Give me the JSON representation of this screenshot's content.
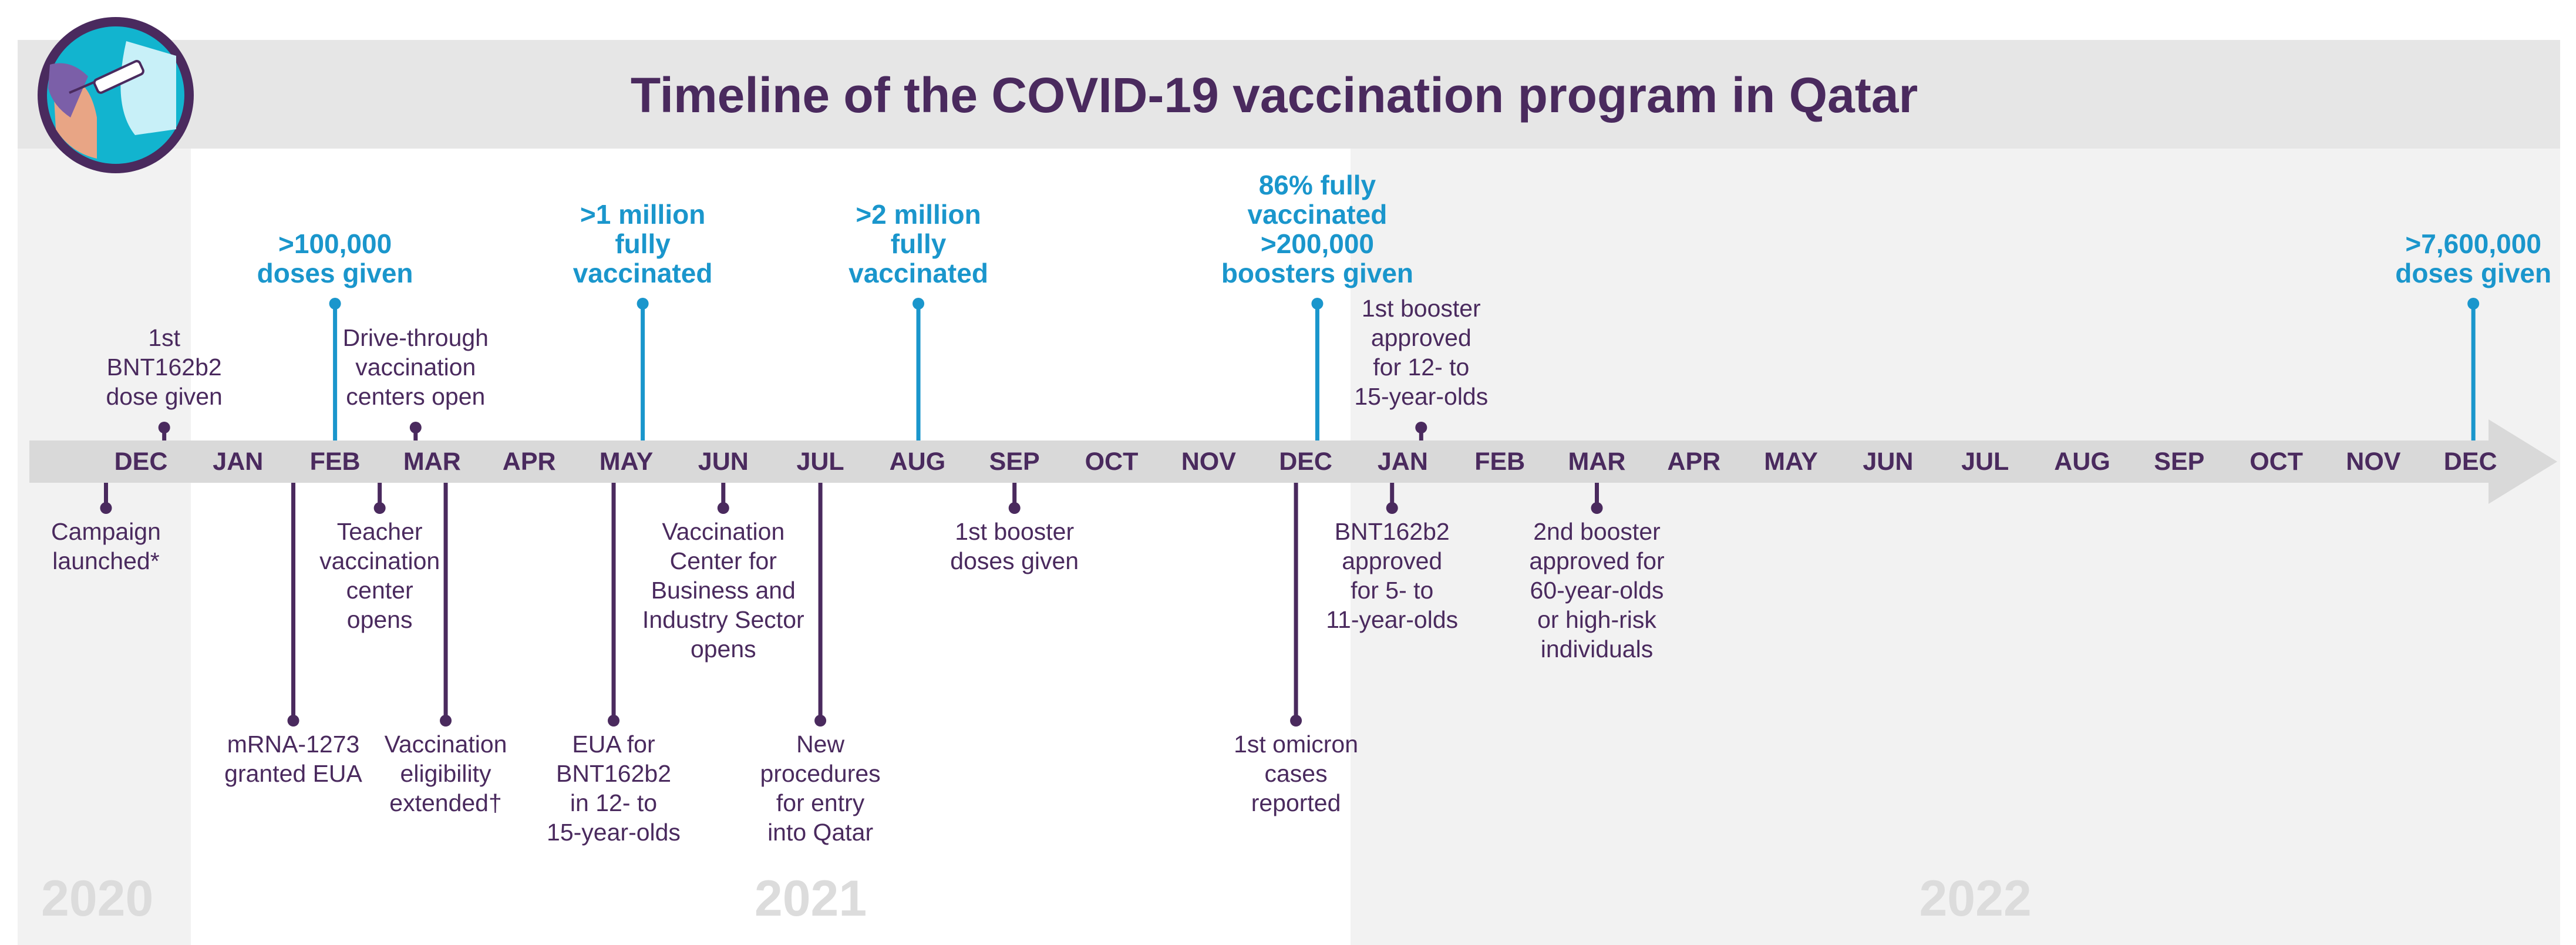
{
  "title": "Timeline of the COVID-19 vaccination program in Qatar",
  "years": [
    {
      "label": "2020",
      "start_month_index": 0
    },
    {
      "label": "2021",
      "start_month_index": 6.2
    },
    {
      "label": "2022",
      "start_month_index": 18.2
    }
  ],
  "months": [
    "DEC",
    "JAN",
    "FEB",
    "MAR",
    "APR",
    "MAY",
    "JUN",
    "JUL",
    "AUG",
    "SEP",
    "OCT",
    "NOV",
    "DEC",
    "JAN",
    "FEB",
    "MAR",
    "APR",
    "MAY",
    "JUN",
    "JUL",
    "AUG",
    "SEP",
    "OCT",
    "NOV",
    "DEC"
  ],
  "milestones": [
    {
      "text": ">100,000\ndoses given",
      "month_index": 2
    },
    {
      "text": ">1 million\nfully\nvaccinated",
      "month_index": 5.17
    },
    {
      "text": ">2 million\nfully\nvaccinated",
      "month_index": 8.01
    },
    {
      "text": "86% fully\nvaccinated\n>200,000\nboosters given",
      "month_index": 12.12
    },
    {
      "text": ">7,600,000\ndoses given",
      "month_index": 24.03
    }
  ],
  "events_above": [
    {
      "text": "1st\nBNT162b2\ndose given",
      "month_index": 0.24
    },
    {
      "text": "Drive-through\nvaccination\ncenters open",
      "month_index": 2.83
    },
    {
      "text": "1st booster\napproved\nfor 12- to\n15-year-olds",
      "month_index": 13.19
    }
  ],
  "events_below": [
    {
      "text": "Campaign\nlaunched*",
      "month_index": -0.36,
      "level": "short"
    },
    {
      "text": "Teacher\nvaccination\ncenter\nopens",
      "month_index": 2.46,
      "level": "short"
    },
    {
      "text": "Vaccination\nCenter for\nBusiness and\nIndustry Sector\nopens",
      "month_index": 6.0,
      "level": "short"
    },
    {
      "text": "1st booster\ndoses given",
      "month_index": 9.0,
      "level": "short"
    },
    {
      "text": "BNT162b2\napproved\nfor 5- to\n11-year-olds",
      "month_index": 12.89,
      "level": "short"
    },
    {
      "text": "2nd booster\napproved for\n60-year-olds\nor high-risk\nindividuals",
      "month_index": 15.0,
      "level": "short"
    },
    {
      "text": "mRNA-1273\ngranted EUA",
      "month_index": 1.57,
      "level": "long"
    },
    {
      "text": "Vaccination\neligibility\nextended†",
      "month_index": 3.14,
      "level": "long"
    },
    {
      "text": "EUA for\nBNT162b2\nin 12- to\n15-year-olds",
      "month_index": 4.87,
      "level": "long"
    },
    {
      "text": "New\nprocedures\nfor entry\ninto Qatar",
      "month_index": 7.0,
      "level": "long"
    },
    {
      "text": "1st omicron\ncases\nreported",
      "month_index": 11.9,
      "level": "long"
    }
  ],
  "colors": {
    "purple": "#4a2a5e",
    "blue": "#1a96cc",
    "axis": "#d9d9d9",
    "shade": "#f2f2f2",
    "header": "#e6e6e6",
    "year": "#dcdcdc"
  }
}
